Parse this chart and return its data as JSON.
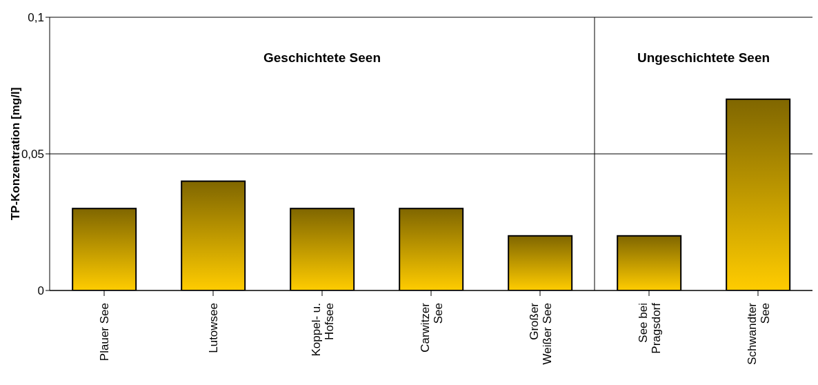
{
  "chart_data": {
    "type": "bar",
    "ylabel": "TP-Konzentration [mg/l]",
    "categories": [
      "Plauer See",
      "Lutowsee",
      "Koppel- u. Hofsee",
      "Carwitzer See",
      "Großer Weißer See",
      "See bei Pragsdorf",
      "Schwandter See"
    ],
    "values": [
      0.03,
      0.04,
      0.03,
      0.03,
      0.02,
      0.02,
      0.07
    ],
    "color": "#ffcc00",
    "ylim": [
      0,
      0.1
    ],
    "yticks": [
      {
        "value": 0,
        "label": "0"
      },
      {
        "value": 0.05,
        "label": "0,05"
      },
      {
        "value": 0.1,
        "label": "0,1"
      }
    ],
    "grid": "y",
    "annotations": [
      "Geschichtete Seen",
      "Ungeschichtete Seen"
    ]
  }
}
